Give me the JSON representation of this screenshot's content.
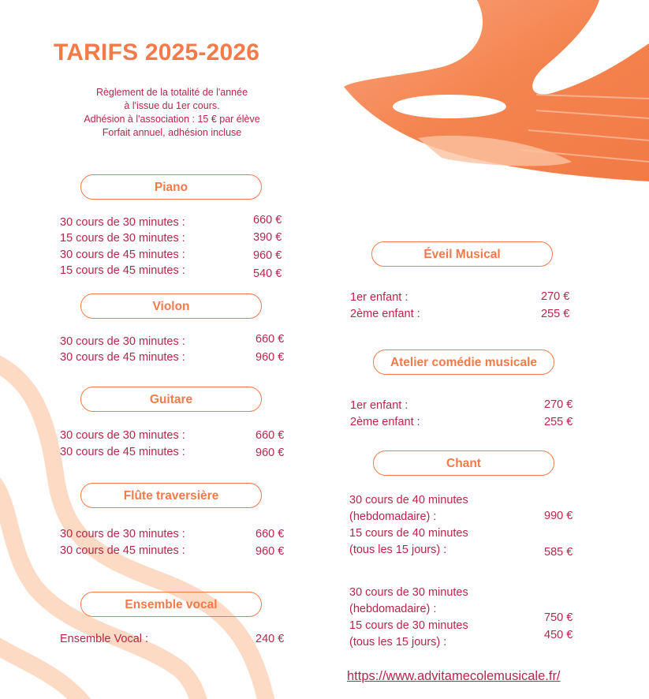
{
  "title": "TARIFS 2025-2026",
  "intro": [
    "Règlement de la totalité de l'année",
    "à l'issue du 1er cours.",
    "Adhésion à l'association : 15 € par élève",
    "Forfait annuel, adhésion incluse"
  ],
  "sections": {
    "piano": {
      "label": "Piano",
      "rows": [
        [
          "30 cours de 30 minutes :",
          "660 €"
        ],
        [
          "15 cours de 30 minutes :",
          "390 €"
        ],
        [
          "30 cours de 45 minutes :",
          "960 €"
        ],
        [
          "15 cours de 45 minutes :",
          "540 €"
        ]
      ]
    },
    "violon": {
      "label": "Violon",
      "rows": [
        [
          "30 cours de 30 minutes :",
          "660 €"
        ],
        [
          "30 cours de 45 minutes :",
          "960 €"
        ]
      ]
    },
    "guitare": {
      "label": "Guitare",
      "rows": [
        [
          "30 cours de 30 minutes :",
          "660 €"
        ],
        [
          "30 cours de 45 minutes :",
          "960 €"
        ]
      ]
    },
    "flute": {
      "label": "Flûte traversière",
      "rows": [
        [
          "30 cours de 30 minutes :",
          "660 €"
        ],
        [
          "30 cours de 45 minutes :",
          "960 €"
        ]
      ]
    },
    "ensemble": {
      "label": "Ensemble vocal",
      "rows": [
        [
          "Ensemble Vocal :",
          "240 €"
        ]
      ]
    },
    "eveil": {
      "label": "Éveil Musical",
      "rows": [
        [
          "1er enfant :",
          "270 €"
        ],
        [
          "2ème enfant :",
          "255 €"
        ]
      ]
    },
    "atelier": {
      "label": "Atelier comédie musicale",
      "rows": [
        [
          "1er enfant :",
          "270 €"
        ],
        [
          "2ème enfant :",
          "255 €"
        ]
      ]
    },
    "chant": {
      "label": "Chant",
      "lines": [
        "30 cours de 40 minutes",
        "(hebdomadaire) :",
        "15 cours de 40 minutes",
        "(tous les 15 jours) :",
        "30 cours de 30 minutes",
        "(hebdomadaire) :",
        "15 cours de 30 minutes",
        "(tous les 15 jours) :"
      ],
      "prices": [
        "990 €",
        "585 €",
        "750 €",
        "450 €"
      ]
    }
  },
  "url": "https://www.advitamecolemusicale.fr/",
  "colors": {
    "accent": "#f47a4a",
    "text": "#b8264a",
    "wave": "#fdd6bd"
  }
}
